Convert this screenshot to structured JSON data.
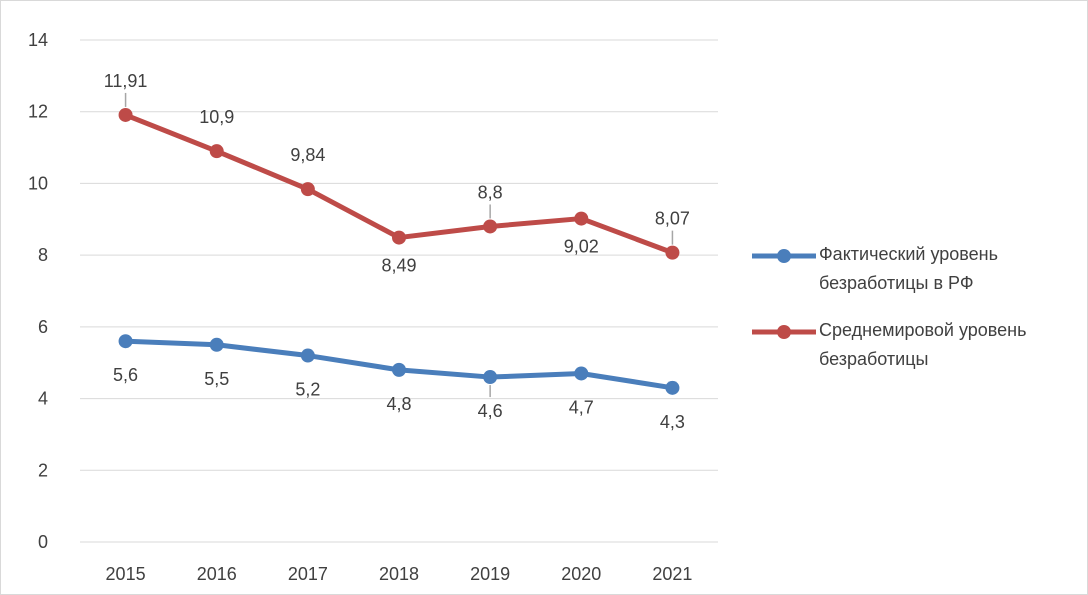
{
  "chart_data": {
    "type": "line",
    "categories": [
      "2015",
      "2016",
      "2017",
      "2018",
      "2019",
      "2020",
      "2021"
    ],
    "ylim": [
      0,
      14
    ],
    "yticks": [
      0,
      2,
      4,
      6,
      8,
      10,
      12,
      14
    ],
    "grid": true,
    "legend_position": "right",
    "series": [
      {
        "name": "Фактический уровень безработицы в РФ",
        "color": "#4a7ebb",
        "values": [
          5.6,
          5.5,
          5.2,
          4.8,
          4.6,
          4.7,
          4.3
        ],
        "labels": [
          "5,6",
          "5,5",
          "5,2",
          "4,8",
          "4,6",
          "4,7",
          "4,3"
        ]
      },
      {
        "name": "Среднемировой уровень безработицы",
        "color": "#be4b48",
        "values": [
          11.91,
          10.9,
          9.84,
          8.49,
          8.8,
          9.02,
          8.07
        ],
        "labels": [
          "11,91",
          "10,9",
          "9,84",
          "8,49",
          "8,8",
          "9,02",
          "8,07"
        ]
      }
    ]
  }
}
